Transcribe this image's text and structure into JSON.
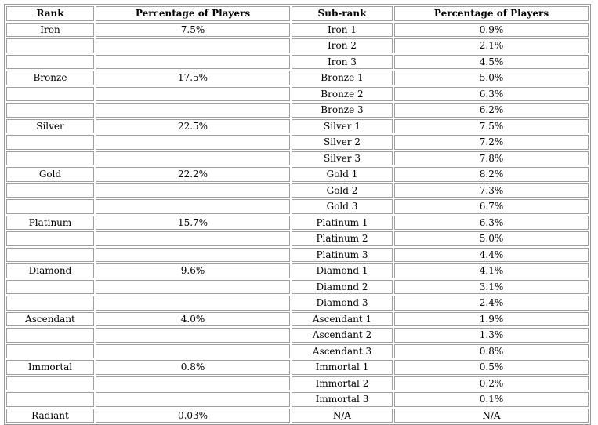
{
  "headers": [
    "Rank",
    "Percentage of Players",
    "Sub-rank",
    "Percentage of Players"
  ],
  "rows": [
    [
      "Iron",
      "7.5%",
      "Iron 1",
      "0.9%"
    ],
    [
      "",
      "",
      "Iron 2",
      "2.1%"
    ],
    [
      "",
      "",
      "Iron 3",
      "4.5%"
    ],
    [
      "Bronze",
      "17.5%",
      "Bronze 1",
      "5.0%"
    ],
    [
      "",
      "",
      "Bronze 2",
      "6.3%"
    ],
    [
      "",
      "",
      "Bronze 3",
      "6.2%"
    ],
    [
      "Silver",
      "22.5%",
      "Silver 1",
      "7.5%"
    ],
    [
      "",
      "",
      "Silver 2",
      "7.2%"
    ],
    [
      "",
      "",
      "Silver 3",
      "7.8%"
    ],
    [
      "Gold",
      "22.2%",
      "Gold 1",
      "8.2%"
    ],
    [
      "",
      "",
      "Gold 2",
      "7.3%"
    ],
    [
      "",
      "",
      "Gold 3",
      "6.7%"
    ],
    [
      "Platinum",
      "15.7%",
      "Platinum 1",
      "6.3%"
    ],
    [
      "",
      "",
      "Platinum 2",
      "5.0%"
    ],
    [
      "",
      "",
      "Platinum 3",
      "4.4%"
    ],
    [
      "Diamond",
      "9.6%",
      "Diamond 1",
      "4.1%"
    ],
    [
      "",
      "",
      "Diamond 2",
      "3.1%"
    ],
    [
      "",
      "",
      "Diamond 3",
      "2.4%"
    ],
    [
      "Ascendant",
      "4.0%",
      "Ascendant 1",
      "1.9%"
    ],
    [
      "",
      "",
      "Ascendant 2",
      "1.3%"
    ],
    [
      "",
      "",
      "Ascendant 3",
      "0.8%"
    ],
    [
      "Immortal",
      "0.8%",
      "Immortal 1",
      "0.5%"
    ],
    [
      "",
      "",
      "Immortal 2",
      "0.2%"
    ],
    [
      "",
      "",
      "Immortal 3",
      "0.1%"
    ],
    [
      "Radiant",
      "0.03%",
      "N/A",
      "N/A"
    ]
  ]
}
